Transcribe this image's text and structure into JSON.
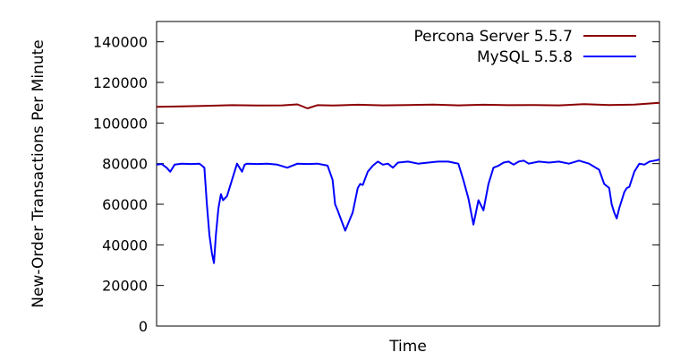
{
  "chart_data": {
    "type": "line",
    "xlabel": "Time",
    "ylabel": "New-Order Transactions Per Minute",
    "ylim": [
      0,
      150000
    ],
    "xlim": [
      0,
      100
    ],
    "yticks": [
      0,
      20000,
      40000,
      60000,
      80000,
      100000,
      120000,
      140000
    ],
    "ytick_labels": [
      "0",
      "20000",
      "40000",
      "60000",
      "80000",
      "100000",
      "120000",
      "140000"
    ],
    "grid": false,
    "legend_position": "top-right",
    "series": [
      {
        "name": "Percona Server 5.5.7",
        "color": "#8b0000",
        "x": [
          0,
          5,
          10,
          15,
          20,
          25,
          28,
          30,
          32,
          35,
          40,
          45,
          50,
          55,
          60,
          65,
          70,
          75,
          80,
          85,
          90,
          95,
          100
        ],
        "values": [
          108000,
          108200,
          108500,
          108800,
          108600,
          108700,
          109200,
          107200,
          108800,
          108600,
          109000,
          108700,
          108900,
          109100,
          108700,
          109000,
          108800,
          108900,
          108700,
          109300,
          108900,
          109100,
          110000
        ]
      },
      {
        "name": "MySQL 5.5.8",
        "color": "#0000ff",
        "x": [
          0,
          1,
          2,
          2.7,
          3.6,
          5,
          7,
          8.5,
          9,
          9.5,
          10,
          10.5,
          11,
          11.4,
          11.8,
          12.3,
          12.8,
          13.2,
          14,
          15,
          16,
          16.5,
          17,
          17.5,
          18,
          20,
          22,
          24,
          26,
          28,
          30,
          32,
          34,
          35,
          35.5,
          36,
          36.6,
          37.5,
          38,
          38.5,
          39,
          40,
          40.5,
          41,
          42,
          43,
          44,
          45,
          46,
          47,
          48,
          50,
          52,
          54,
          56,
          58,
          60,
          61,
          62,
          63,
          64,
          65,
          66,
          67,
          68,
          69,
          70,
          71,
          72,
          73,
          74,
          76,
          78,
          80,
          82,
          84,
          86,
          88,
          89,
          90,
          90.5,
          91,
          91.5,
          92,
          92.5,
          93,
          93.5,
          94,
          95,
          96,
          97,
          98,
          99,
          100
        ],
        "values": [
          79500,
          79800,
          78000,
          76000,
          79500,
          80000,
          79800,
          80000,
          79000,
          78000,
          60000,
          45000,
          36000,
          31000,
          45000,
          58000,
          65000,
          62000,
          64000,
          72000,
          80000,
          78000,
          76000,
          79500,
          80000,
          79800,
          80000,
          79500,
          78000,
          80000,
          79800,
          80000,
          79000,
          72000,
          60000,
          57000,
          53000,
          47000,
          50000,
          53000,
          56000,
          68000,
          70000,
          69500,
          76000,
          79000,
          81000,
          79500,
          80000,
          78000,
          80500,
          81000,
          80000,
          80500,
          81000,
          81000,
          80000,
          72000,
          63000,
          50000,
          62000,
          57000,
          70000,
          78000,
          79000,
          80500,
          81000,
          79500,
          81000,
          81500,
          80000,
          81000,
          80500,
          81000,
          80000,
          81500,
          80000,
          77000,
          70000,
          68000,
          60000,
          56000,
          53000,
          58000,
          62000,
          66000,
          68000,
          68500,
          76000,
          80000,
          79500,
          81000,
          81500,
          82000
        ]
      }
    ]
  }
}
